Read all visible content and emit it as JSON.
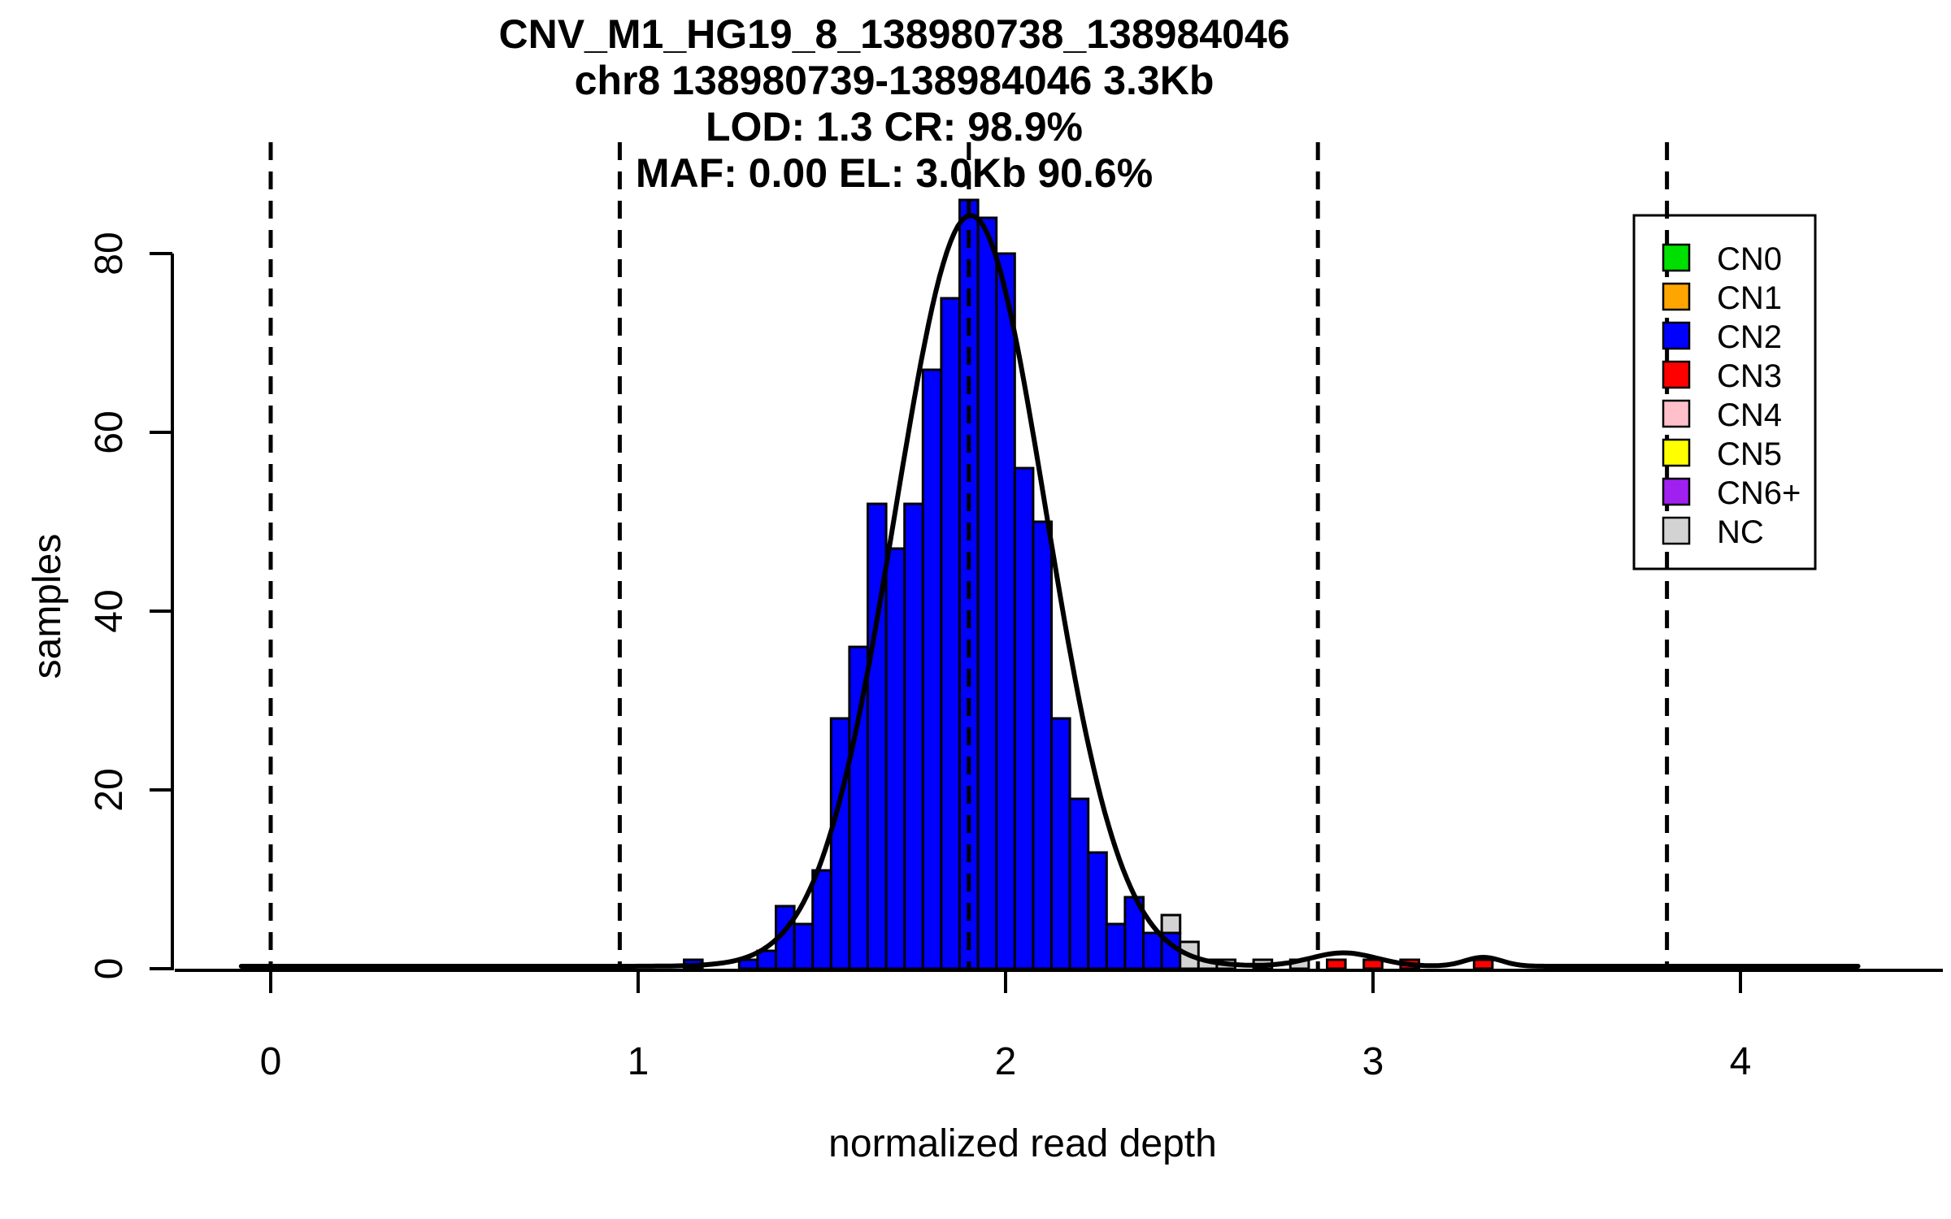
{
  "chart_data": {
    "type": "bar",
    "subtype": "histogram-with-gaussian-fit",
    "title_lines": [
      "CNV_M1_HG19_8_138980738_138984046",
      "chr8 138980739-138984046 3.3Kb",
      "LOD: 1.3 CR: 98.9%",
      "MAF: 0.00 EL: 3.0Kb 90.6%"
    ],
    "xlabel": "normalized read depth",
    "ylabel": "samples",
    "xticks": [
      0,
      1,
      2,
      3,
      4
    ],
    "yticks": [
      0,
      20,
      40,
      60,
      80
    ],
    "xlim": [
      -0.1,
      4.3
    ],
    "ylim": [
      0,
      86
    ],
    "bin_width": 0.05,
    "grid": "off",
    "legend_position": "top-right",
    "colors": {
      "CN0": "#00E000",
      "CN1": "#FFA500",
      "CN2": "#0000FF",
      "CN3": "#FF0000",
      "CN4": "#FFC0CB",
      "CN5": "#FFFF00",
      "CN6+": "#A020F0",
      "NC": "#D3D3D3",
      "curve": "#000000",
      "axis": "#000000"
    },
    "legend": [
      {
        "label": "CN0",
        "cn": "CN0"
      },
      {
        "label": "CN1",
        "cn": "CN1"
      },
      {
        "label": "CN2",
        "cn": "CN2"
      },
      {
        "label": "CN3",
        "cn": "CN3"
      },
      {
        "label": "CN4",
        "cn": "CN4"
      },
      {
        "label": "CN5",
        "cn": "CN5"
      },
      {
        "label": "CN6+",
        "cn": "CN6+"
      },
      {
        "label": "NC",
        "cn": "NC"
      }
    ],
    "dashed_lines_x": [
      0,
      0.95,
      1.9,
      2.85,
      3.8
    ],
    "bars": [
      {
        "x": 1.15,
        "segments": [
          {
            "cn": "CN2",
            "count": 1
          }
        ]
      },
      {
        "x": 1.3,
        "segments": [
          {
            "cn": "CN2",
            "count": 1
          }
        ]
      },
      {
        "x": 1.35,
        "segments": [
          {
            "cn": "CN2",
            "count": 2
          }
        ]
      },
      {
        "x": 1.4,
        "segments": [
          {
            "cn": "CN2",
            "count": 7
          }
        ]
      },
      {
        "x": 1.45,
        "segments": [
          {
            "cn": "CN2",
            "count": 5
          }
        ]
      },
      {
        "x": 1.5,
        "segments": [
          {
            "cn": "CN2",
            "count": 11
          }
        ]
      },
      {
        "x": 1.55,
        "segments": [
          {
            "cn": "CN2",
            "count": 28
          }
        ]
      },
      {
        "x": 1.6,
        "segments": [
          {
            "cn": "CN2",
            "count": 36
          }
        ]
      },
      {
        "x": 1.65,
        "segments": [
          {
            "cn": "CN2",
            "count": 52
          }
        ]
      },
      {
        "x": 1.7,
        "segments": [
          {
            "cn": "CN2",
            "count": 47
          }
        ]
      },
      {
        "x": 1.75,
        "segments": [
          {
            "cn": "CN2",
            "count": 52
          }
        ]
      },
      {
        "x": 1.8,
        "segments": [
          {
            "cn": "CN2",
            "count": 67
          }
        ]
      },
      {
        "x": 1.85,
        "segments": [
          {
            "cn": "CN2",
            "count": 75
          }
        ]
      },
      {
        "x": 1.9,
        "segments": [
          {
            "cn": "CN2",
            "count": 86
          }
        ]
      },
      {
        "x": 1.95,
        "segments": [
          {
            "cn": "CN2",
            "count": 84
          }
        ]
      },
      {
        "x": 2.0,
        "segments": [
          {
            "cn": "CN2",
            "count": 80
          }
        ]
      },
      {
        "x": 2.05,
        "segments": [
          {
            "cn": "CN2",
            "count": 56
          }
        ]
      },
      {
        "x": 2.1,
        "segments": [
          {
            "cn": "CN2",
            "count": 50
          }
        ]
      },
      {
        "x": 2.15,
        "segments": [
          {
            "cn": "CN2",
            "count": 28
          }
        ]
      },
      {
        "x": 2.2,
        "segments": [
          {
            "cn": "CN2",
            "count": 19
          }
        ]
      },
      {
        "x": 2.25,
        "segments": [
          {
            "cn": "CN2",
            "count": 13
          }
        ]
      },
      {
        "x": 2.3,
        "segments": [
          {
            "cn": "CN2",
            "count": 5
          }
        ]
      },
      {
        "x": 2.35,
        "segments": [
          {
            "cn": "CN2",
            "count": 8
          }
        ]
      },
      {
        "x": 2.4,
        "segments": [
          {
            "cn": "CN2",
            "count": 4
          }
        ]
      },
      {
        "x": 2.45,
        "segments": [
          {
            "cn": "CN2",
            "count": 4
          },
          {
            "cn": "NC",
            "count": 2
          }
        ]
      },
      {
        "x": 2.5,
        "segments": [
          {
            "cn": "NC",
            "count": 3
          }
        ]
      },
      {
        "x": 2.55,
        "segments": [
          {
            "cn": "NC",
            "count": 1
          }
        ]
      },
      {
        "x": 2.6,
        "segments": [
          {
            "cn": "NC",
            "count": 1
          }
        ]
      },
      {
        "x": 2.7,
        "segments": [
          {
            "cn": "NC",
            "count": 1
          }
        ]
      },
      {
        "x": 2.8,
        "segments": [
          {
            "cn": "NC",
            "count": 1
          }
        ]
      },
      {
        "x": 2.9,
        "segments": [
          {
            "cn": "CN3",
            "count": 1
          }
        ]
      },
      {
        "x": 3.0,
        "segments": [
          {
            "cn": "CN3",
            "count": 1
          }
        ]
      },
      {
        "x": 3.1,
        "segments": [
          {
            "cn": "CN3",
            "count": 1
          }
        ]
      },
      {
        "x": 3.3,
        "segments": [
          {
            "cn": "CN3",
            "count": 1
          }
        ]
      }
    ],
    "fit_curve": {
      "components": [
        {
          "amp": 84,
          "mean": 1.905,
          "sd": 0.205
        },
        {
          "amp": 1.5,
          "mean": 2.92,
          "sd": 0.09
        },
        {
          "amp": 1.0,
          "mean": 3.3,
          "sd": 0.05
        }
      ]
    }
  }
}
